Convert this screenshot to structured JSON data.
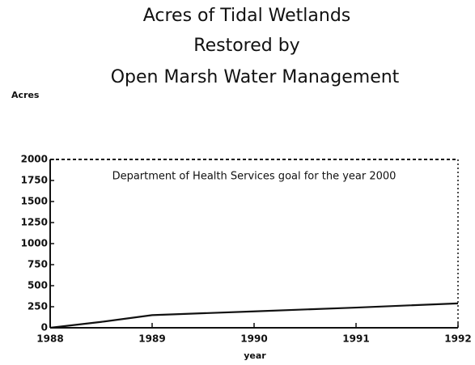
{
  "chart_data": {
    "type": "line",
    "title": [
      "Acres of Tidal Wetlands",
      "Restored by",
      "Open Marsh Water Management"
    ],
    "y_label": "Acres",
    "x_label": "year",
    "x": [
      1988,
      1988.5,
      1989,
      1990,
      1991,
      1992
    ],
    "series": [
      {
        "color": "#111111",
        "values": [
          0,
          70,
          150,
          195,
          240,
          290
        ]
      }
    ],
    "xlim": [
      1988,
      1992
    ],
    "xticks": [
      1988,
      1989,
      1990,
      1991,
      1992
    ],
    "ylim": [
      0,
      2000
    ],
    "yticks": [
      0,
      250,
      500,
      750,
      1000,
      1250,
      1500,
      1750,
      2000
    ],
    "goal": {
      "value": 2000,
      "label": "Department of Health Services goal for the year 2000"
    }
  }
}
